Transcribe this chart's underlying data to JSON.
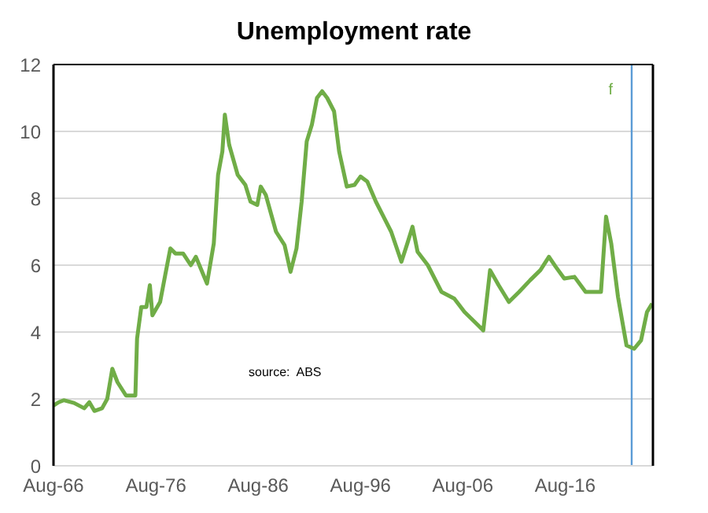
{
  "chart_data": {
    "type": "line",
    "title": "Unemployment rate",
    "x": [
      "1966-08",
      "1967-02",
      "1967-08",
      "1968-08",
      "1969-08",
      "1970-02",
      "1970-08",
      "1971-05",
      "1971-11",
      "1972-05",
      "1972-11",
      "1973-09",
      "1974-08",
      "1974-10",
      "1975-03",
      "1975-09",
      "1976-01",
      "1976-04",
      "1977-01",
      "1977-07",
      "1978-01",
      "1978-07",
      "1979-04",
      "1980-01",
      "1980-07",
      "1981-08",
      "1982-04",
      "1982-09",
      "1983-02",
      "1983-05",
      "1983-10",
      "1984-08",
      "1985-05",
      "1985-11",
      "1986-07",
      "1986-11",
      "1987-05",
      "1988-05",
      "1989-03",
      "1989-10",
      "1990-05",
      "1990-11",
      "1991-05",
      "1991-11",
      "1992-05",
      "1992-11",
      "1993-05",
      "1994-01",
      "1994-07",
      "1995-04",
      "1996-01",
      "1996-08",
      "1997-04",
      "1998-02",
      "1998-11",
      "1999-08",
      "2000-08",
      "2001-03",
      "2001-09",
      "2002-03",
      "2003-03",
      "2004-07",
      "2005-10",
      "2006-10",
      "2008-02",
      "2008-08",
      "2009-04",
      "2010-02",
      "2011-02",
      "2012-02",
      "2013-03",
      "2014-03",
      "2015-01",
      "2015-09",
      "2016-07",
      "2017-07",
      "2018-08",
      "2019-04",
      "2020-02",
      "2020-08",
      "2021-02",
      "2021-10",
      "2022-08",
      "2023-05",
      "2024-01",
      "2024-08",
      "2025-02"
    ],
    "series": [
      {
        "color": "#70ad47",
        "values": [
          1.8,
          1.9,
          1.96,
          1.88,
          1.72,
          1.9,
          1.64,
          1.72,
          2.0,
          2.9,
          2.5,
          2.1,
          2.1,
          3.8,
          4.75,
          4.75,
          5.4,
          4.5,
          4.9,
          5.7,
          6.5,
          6.35,
          6.35,
          6.0,
          6.25,
          5.45,
          6.65,
          8.7,
          9.4,
          10.5,
          9.6,
          8.7,
          8.4,
          7.9,
          7.8,
          8.35,
          8.1,
          7.0,
          6.6,
          5.8,
          6.5,
          7.9,
          9.7,
          10.2,
          11.0,
          11.2,
          11.0,
          10.6,
          9.4,
          8.35,
          8.4,
          8.65,
          8.5,
          7.9,
          7.45,
          7.0,
          6.1,
          6.65,
          7.15,
          6.4,
          6.0,
          5.2,
          5.0,
          4.6,
          4.2,
          4.05,
          5.85,
          5.4,
          4.9,
          5.2,
          5.55,
          5.85,
          6.25,
          5.95,
          5.6,
          5.65,
          5.2,
          5.2,
          5.2,
          7.45,
          6.65,
          5.05,
          3.6,
          3.5,
          3.75,
          4.6,
          4.85
        ]
      }
    ],
    "xlim": [
      "1966-08",
      "2025-03"
    ],
    "xticks": [
      {
        "value": "1966-08",
        "label": "Aug-66"
      },
      {
        "value": "1976-08",
        "label": "Aug-76"
      },
      {
        "value": "1986-08",
        "label": "Aug-86"
      },
      {
        "value": "1996-08",
        "label": "Aug-96"
      },
      {
        "value": "2006-08",
        "label": "Aug-06"
      },
      {
        "value": "2016-08",
        "label": "Aug-16"
      }
    ],
    "ylim": [
      0,
      12
    ],
    "yticks": [
      0,
      2,
      4,
      6,
      8,
      10,
      12
    ],
    "grid": "y",
    "legend": false,
    "marker": "none",
    "line_style": "solid",
    "ref_lines": [
      {
        "axis": "x",
        "value": "2023-02",
        "label": "f",
        "color": "#5b9bd5"
      }
    ],
    "annotations": [
      "source:  ABS"
    ]
  }
}
